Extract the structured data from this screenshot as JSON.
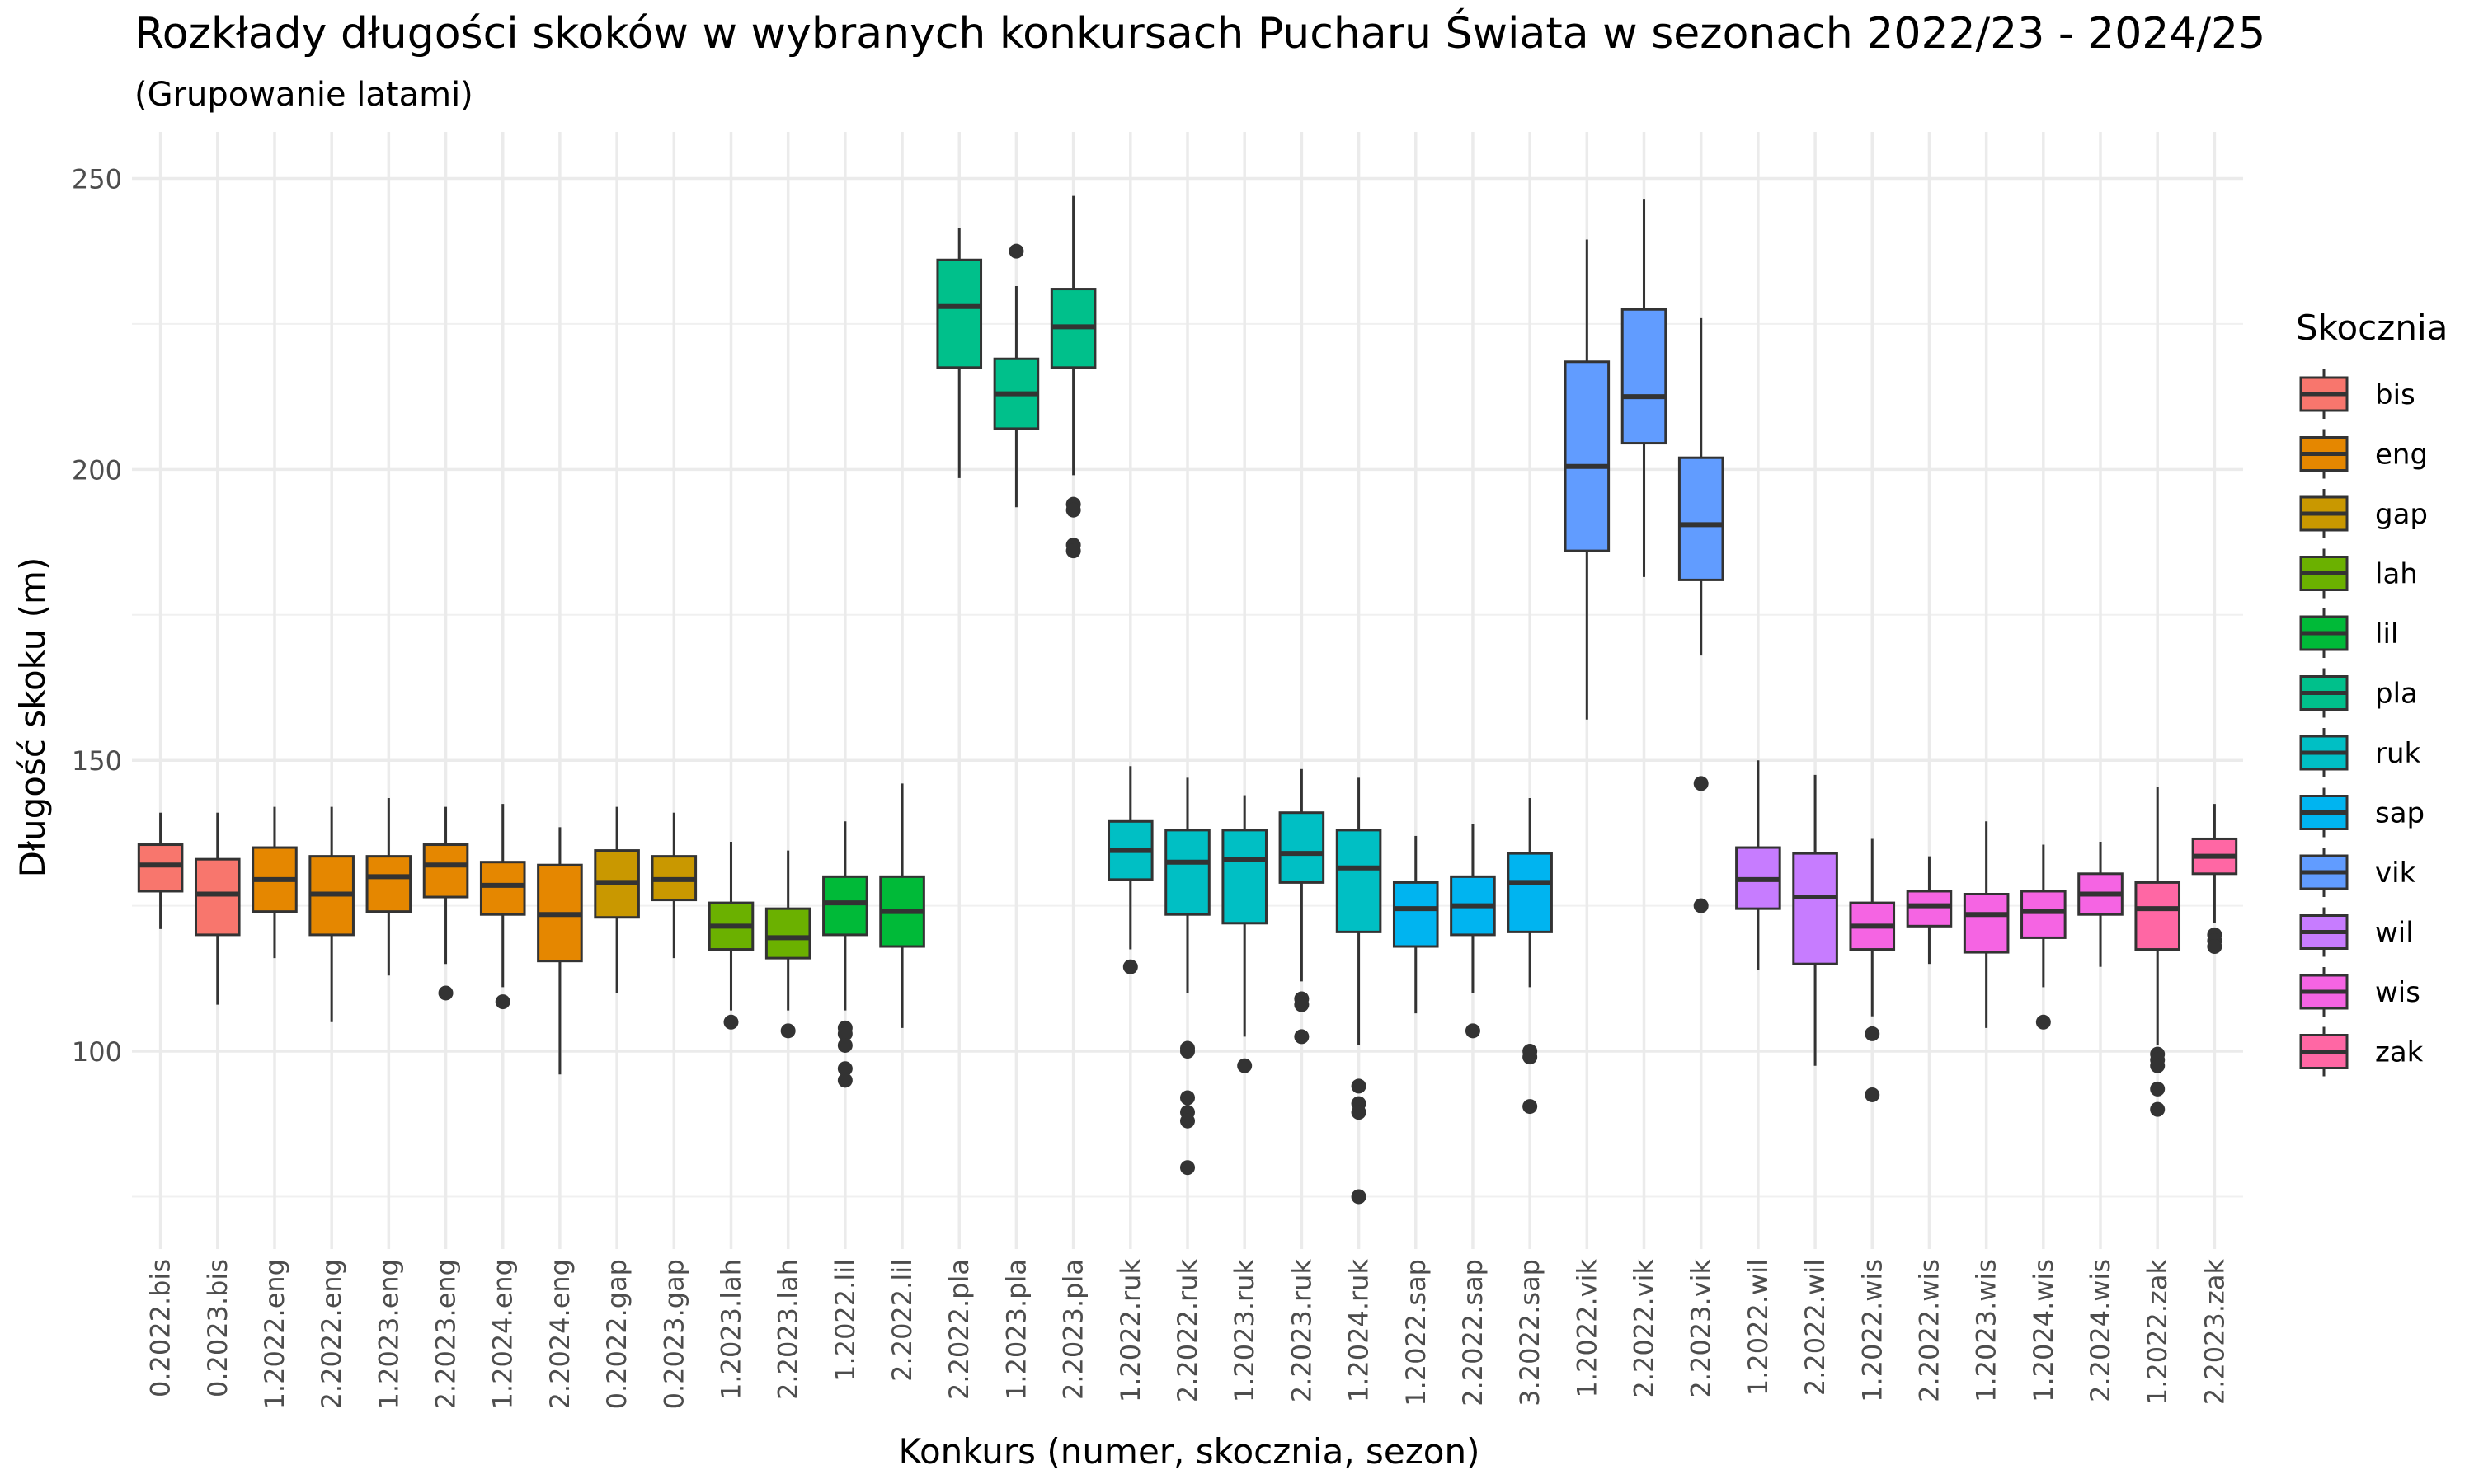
{
  "chart_data": {
    "type": "boxplot",
    "title": "Rozkłady długości skoków w wybranych konkursach Pucharu Świata w sezonach 2022/23 - 2024/25",
    "subtitle": "(Grupowanie latami)",
    "xlabel": "Konkurs (numer, skocznia, sezon)",
    "ylabel": "Długość skoku (m)",
    "ylim": [
      66,
      258
    ],
    "yticks": [
      100,
      150,
      200,
      250
    ],
    "grid": true,
    "legend": {
      "title": "Skocznia",
      "position": "right"
    },
    "colors": {
      "bis": "#F8766D",
      "eng": "#E58700",
      "gap": "#C99800",
      "lah": "#6BB100",
      "lil": "#00BA38",
      "pla": "#00C08B",
      "ruk": "#00BFC4",
      "sap": "#00B4F0",
      "vik": "#619CFF",
      "wil": "#C77CFF",
      "wis": "#F564E3",
      "zak": "#FF67A4"
    },
    "legend_items": [
      "bis",
      "eng",
      "gap",
      "lah",
      "lil",
      "pla",
      "ruk",
      "sap",
      "vik",
      "wil",
      "wis",
      "zak"
    ],
    "categories": [
      "0.2022.bis",
      "0.2023.bis",
      "1.2022.eng",
      "2.2022.eng",
      "1.2023.eng",
      "2.2023.eng",
      "1.2024.eng",
      "2.2024.eng",
      "0.2022.gap",
      "0.2023.gap",
      "1.2023.lah",
      "2.2023.lah",
      "1.2022.lil",
      "2.2022.lil",
      "2.2022.pla",
      "1.2023.pla",
      "2.2023.pla",
      "1.2022.ruk",
      "2.2022.ruk",
      "1.2023.ruk",
      "2.2023.ruk",
      "1.2024.ruk",
      "1.2022.sap",
      "2.2022.sap",
      "3.2022.sap",
      "1.2022.vik",
      "2.2022.vik",
      "2.2023.vik",
      "1.2022.wil",
      "2.2022.wil",
      "1.2022.wis",
      "2.2022.wis",
      "1.2023.wis",
      "1.2024.wis",
      "2.2024.wis",
      "1.2022.zak",
      "2.2023.zak"
    ],
    "boxes": [
      {
        "label": "0.2022.bis",
        "hill": "bis",
        "min": 121,
        "q1": 127.5,
        "median": 132,
        "q3": 135.5,
        "max": 141,
        "outliers": []
      },
      {
        "label": "0.2023.bis",
        "hill": "bis",
        "min": 108,
        "q1": 120,
        "median": 127,
        "q3": 133,
        "max": 141,
        "outliers": []
      },
      {
        "label": "1.2022.eng",
        "hill": "eng",
        "min": 116,
        "q1": 124,
        "median": 129.5,
        "q3": 135,
        "max": 142,
        "outliers": []
      },
      {
        "label": "2.2022.eng",
        "hill": "eng",
        "min": 105,
        "q1": 120,
        "median": 127,
        "q3": 133.5,
        "max": 142,
        "outliers": []
      },
      {
        "label": "1.2023.eng",
        "hill": "eng",
        "min": 113,
        "q1": 124,
        "median": 130,
        "q3": 133.5,
        "max": 143.5,
        "outliers": []
      },
      {
        "label": "2.2023.eng",
        "hill": "eng",
        "min": 115,
        "q1": 126.5,
        "median": 132,
        "q3": 135.5,
        "max": 142,
        "outliers": [
          110
        ]
      },
      {
        "label": "1.2024.eng",
        "hill": "eng",
        "min": 111,
        "q1": 123.5,
        "median": 128.5,
        "q3": 132.5,
        "max": 142.5,
        "outliers": [
          108.5
        ]
      },
      {
        "label": "2.2024.eng",
        "hill": "eng",
        "min": 96,
        "q1": 115.5,
        "median": 123.5,
        "q3": 132,
        "max": 138.5,
        "outliers": []
      },
      {
        "label": "0.2022.gap",
        "hill": "gap",
        "min": 110,
        "q1": 123,
        "median": 129,
        "q3": 134.5,
        "max": 142,
        "outliers": []
      },
      {
        "label": "0.2023.gap",
        "hill": "gap",
        "min": 116,
        "q1": 126,
        "median": 129.5,
        "q3": 133.5,
        "max": 141,
        "outliers": []
      },
      {
        "label": "1.2023.lah",
        "hill": "lah",
        "min": 107,
        "q1": 117.5,
        "median": 121.5,
        "q3": 125.5,
        "max": 136,
        "outliers": [
          105
        ]
      },
      {
        "label": "2.2023.lah",
        "hill": "lah",
        "min": 107,
        "q1": 116,
        "median": 119.5,
        "q3": 124.5,
        "max": 134.5,
        "outliers": [
          103.5
        ]
      },
      {
        "label": "1.2022.lil",
        "hill": "lil",
        "min": 107,
        "q1": 120,
        "median": 125.5,
        "q3": 130,
        "max": 139.5,
        "outliers": [
          104,
          103,
          101,
          97,
          95
        ]
      },
      {
        "label": "2.2022.lil",
        "hill": "lil",
        "min": 104,
        "q1": 118,
        "median": 124,
        "q3": 130,
        "max": 146,
        "outliers": []
      },
      {
        "label": "2.2022.pla",
        "hill": "pla",
        "min": 198.5,
        "q1": 217.5,
        "median": 228,
        "q3": 236,
        "max": 241.5,
        "outliers": []
      },
      {
        "label": "1.2023.pla",
        "hill": "pla",
        "min": 193.5,
        "q1": 207,
        "median": 213,
        "q3": 219,
        "max": 231.5,
        "outliers": [
          237.5
        ]
      },
      {
        "label": "2.2023.pla",
        "hill": "pla",
        "min": 199,
        "q1": 217.5,
        "median": 224.5,
        "q3": 231,
        "max": 247,
        "outliers": [
          194,
          193,
          187,
          186
        ]
      },
      {
        "label": "1.2022.ruk",
        "hill": "ruk",
        "min": 117.5,
        "q1": 129.5,
        "median": 134.5,
        "q3": 139.5,
        "max": 149,
        "outliers": [
          114.5
        ]
      },
      {
        "label": "2.2022.ruk",
        "hill": "ruk",
        "min": 110,
        "q1": 123.5,
        "median": 132.5,
        "q3": 138,
        "max": 147,
        "outliers": [
          100.5,
          100,
          92,
          89.5,
          88,
          80
        ]
      },
      {
        "label": "1.2023.ruk",
        "hill": "ruk",
        "min": 102.5,
        "q1": 122,
        "median": 133,
        "q3": 138,
        "max": 144,
        "outliers": [
          97.5
        ]
      },
      {
        "label": "2.2023.ruk",
        "hill": "ruk",
        "min": 112,
        "q1": 129,
        "median": 134,
        "q3": 141,
        "max": 148.5,
        "outliers": [
          109,
          108,
          102.5
        ]
      },
      {
        "label": "1.2024.ruk",
        "hill": "ruk",
        "min": 101,
        "q1": 120.5,
        "median": 131.5,
        "q3": 138,
        "max": 147,
        "outliers": [
          94,
          91,
          89.5,
          75
        ]
      },
      {
        "label": "1.2022.sap",
        "hill": "sap",
        "min": 106.5,
        "q1": 118,
        "median": 124.5,
        "q3": 129,
        "max": 137,
        "outliers": []
      },
      {
        "label": "2.2022.sap",
        "hill": "sap",
        "min": 110,
        "q1": 120,
        "median": 125,
        "q3": 130,
        "max": 139,
        "outliers": [
          103.5
        ]
      },
      {
        "label": "3.2022.sap",
        "hill": "sap",
        "min": 111,
        "q1": 120.5,
        "median": 129,
        "q3": 134,
        "max": 143.5,
        "outliers": [
          100,
          99,
          90.5
        ]
      },
      {
        "label": "1.2022.vik",
        "hill": "vik",
        "min": 157,
        "q1": 186,
        "median": 200.5,
        "q3": 218.5,
        "max": 239.5,
        "outliers": []
      },
      {
        "label": "2.2022.vik",
        "hill": "vik",
        "min": 181.5,
        "q1": 204.5,
        "median": 212.5,
        "q3": 227.5,
        "max": 246.5,
        "outliers": []
      },
      {
        "label": "2.2023.vik",
        "hill": "vik",
        "min": 168,
        "q1": 181,
        "median": 190.5,
        "q3": 202,
        "max": 226,
        "outliers": [
          146,
          125
        ]
      },
      {
        "label": "1.2022.wil",
        "hill": "wil",
        "min": 114,
        "q1": 124.5,
        "median": 129.5,
        "q3": 135,
        "max": 150,
        "outliers": []
      },
      {
        "label": "2.2022.wil",
        "hill": "wil",
        "min": 97.5,
        "q1": 115,
        "median": 126.5,
        "q3": 134,
        "max": 147.5,
        "outliers": []
      },
      {
        "label": "1.2022.wis",
        "hill": "wis",
        "min": 106,
        "q1": 117.5,
        "median": 121.5,
        "q3": 125.5,
        "max": 136.5,
        "outliers": [
          103,
          92.5
        ]
      },
      {
        "label": "2.2022.wis",
        "hill": "wis",
        "min": 115,
        "q1": 121.5,
        "median": 125,
        "q3": 127.5,
        "max": 133.5,
        "outliers": []
      },
      {
        "label": "1.2023.wis",
        "hill": "wis",
        "min": 104,
        "q1": 117,
        "median": 123.5,
        "q3": 127,
        "max": 139.5,
        "outliers": []
      },
      {
        "label": "1.2024.wis",
        "hill": "wis",
        "min": 111,
        "q1": 119.5,
        "median": 124,
        "q3": 127.5,
        "max": 135.5,
        "outliers": [
          105
        ]
      },
      {
        "label": "2.2024.wis",
        "hill": "wis",
        "min": 114.5,
        "q1": 123.5,
        "median": 127,
        "q3": 130.5,
        "max": 136,
        "outliers": []
      },
      {
        "label": "1.2022.zak",
        "hill": "zak",
        "min": 101,
        "q1": 117.5,
        "median": 124.5,
        "q3": 129,
        "max": 145.5,
        "outliers": [
          99.5,
          98.5,
          97.5,
          93.5,
          90
        ]
      },
      {
        "label": "2.2023.zak",
        "hill": "zak",
        "min": 122,
        "q1": 130.5,
        "median": 133.5,
        "q3": 136.5,
        "max": 142.5,
        "outliers": [
          120,
          119,
          118
        ]
      }
    ]
  }
}
